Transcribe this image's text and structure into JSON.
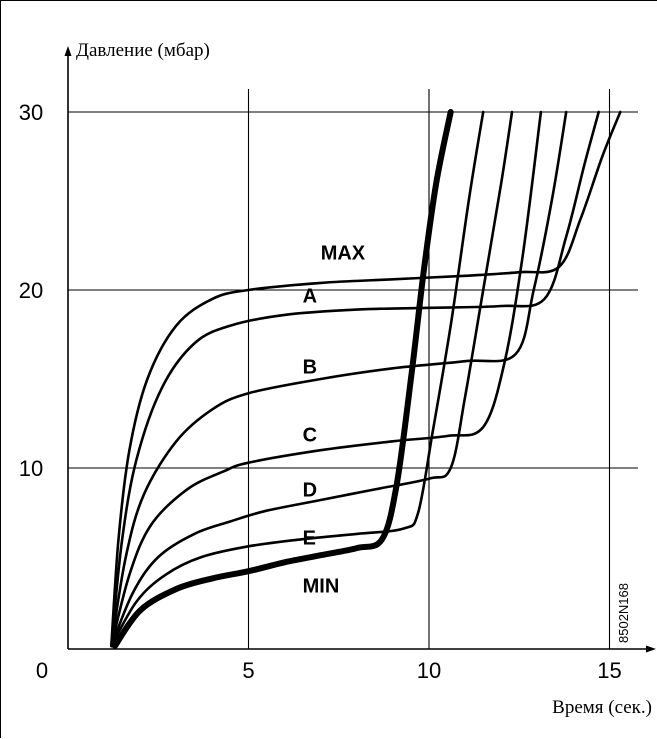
{
  "chart_data": {
    "type": "line",
    "ylabel": "Давление (мбар)",
    "xlabel": "Время (сек.)",
    "code": "8502N168",
    "origin_label": "0",
    "xlim": [
      0,
      16
    ],
    "ylim": [
      0,
      32
    ],
    "x_ticks": [
      {
        "value": 5,
        "label": "5"
      },
      {
        "value": 10,
        "label": "10"
      },
      {
        "value": 15,
        "label": "15"
      }
    ],
    "y_ticks": [
      {
        "value": 10,
        "label": "10"
      },
      {
        "value": 20,
        "label": "20"
      },
      {
        "value": 30,
        "label": "30"
      }
    ],
    "grid": true,
    "series": [
      {
        "name": "MAX",
        "label_pos": [
          7,
          21.7
        ],
        "bold": false,
        "points": [
          [
            1.2,
            0
          ],
          [
            1.4,
            6
          ],
          [
            1.7,
            11
          ],
          [
            2.2,
            15
          ],
          [
            3,
            18
          ],
          [
            4,
            19.5
          ],
          [
            5,
            20
          ],
          [
            7,
            20.4
          ],
          [
            9,
            20.6
          ],
          [
            11,
            20.8
          ],
          [
            12.5,
            21
          ],
          [
            13.6,
            21.3
          ],
          [
            14.2,
            24
          ],
          [
            14.8,
            27.5
          ],
          [
            15.3,
            30
          ]
        ]
      },
      {
        "name": "A",
        "label_pos": [
          6.5,
          19.3
        ],
        "bold": false,
        "points": [
          [
            1.2,
            0
          ],
          [
            1.5,
            6
          ],
          [
            1.9,
            10.5
          ],
          [
            2.6,
            14.5
          ],
          [
            3.5,
            17
          ],
          [
            4.5,
            18
          ],
          [
            6,
            18.6
          ],
          [
            8,
            18.9
          ],
          [
            10,
            19
          ],
          [
            12,
            19.1
          ],
          [
            13.2,
            19.5
          ],
          [
            13.8,
            23
          ],
          [
            14.3,
            27
          ],
          [
            14.7,
            30
          ]
        ]
      },
      {
        "name": "B",
        "label_pos": [
          6.5,
          15.3
        ],
        "bold": false,
        "points": [
          [
            1.2,
            0
          ],
          [
            1.6,
            5
          ],
          [
            2.1,
            8.5
          ],
          [
            3,
            11.5
          ],
          [
            4,
            13.3
          ],
          [
            5,
            14.2
          ],
          [
            7,
            15
          ],
          [
            9,
            15.6
          ],
          [
            11,
            16
          ],
          [
            12.4,
            16.4
          ],
          [
            12.9,
            20
          ],
          [
            13.4,
            25
          ],
          [
            13.8,
            30
          ]
        ]
      },
      {
        "name": "C",
        "label_pos": [
          6.5,
          11.5
        ],
        "bold": false,
        "points": [
          [
            1.2,
            0
          ],
          [
            1.7,
            4
          ],
          [
            2.3,
            6.8
          ],
          [
            3.3,
            8.8
          ],
          [
            4.3,
            9.8
          ],
          [
            5,
            10.3
          ],
          [
            7,
            11
          ],
          [
            9,
            11.5
          ],
          [
            10.5,
            11.8
          ],
          [
            11.5,
            12.3
          ],
          [
            12.1,
            16
          ],
          [
            12.6,
            22
          ],
          [
            13.1,
            30
          ]
        ]
      },
      {
        "name": "D",
        "label_pos": [
          6.5,
          8.4
        ],
        "bold": false,
        "points": [
          [
            1.2,
            0
          ],
          [
            1.8,
            3
          ],
          [
            2.5,
            5
          ],
          [
            3.5,
            6.3
          ],
          [
            4.5,
            7
          ],
          [
            5.5,
            7.6
          ],
          [
            7,
            8.2
          ],
          [
            8.5,
            8.8
          ],
          [
            10,
            9.4
          ],
          [
            10.6,
            10
          ],
          [
            11,
            14
          ],
          [
            11.5,
            20
          ],
          [
            12,
            26
          ],
          [
            12.3,
            30
          ]
        ]
      },
      {
        "name": "E",
        "label_pos": [
          6.5,
          5.7
        ],
        "bold": false,
        "points": [
          [
            1.2,
            0
          ],
          [
            1.9,
            2.5
          ],
          [
            2.7,
            4
          ],
          [
            3.7,
            5
          ],
          [
            5,
            5.6
          ],
          [
            6.5,
            6
          ],
          [
            8,
            6.3
          ],
          [
            9.3,
            6.6
          ],
          [
            9.7,
            7.5
          ],
          [
            10.1,
            12
          ],
          [
            10.6,
            18
          ],
          [
            11.1,
            25
          ],
          [
            11.5,
            30
          ]
        ]
      },
      {
        "name": "MIN",
        "label_pos": [
          6.5,
          3.0
        ],
        "bold": true,
        "points": [
          [
            1.3,
            0
          ],
          [
            2,
            2
          ],
          [
            3,
            3.2
          ],
          [
            4,
            3.8
          ],
          [
            5,
            4.2
          ],
          [
            6,
            4.7
          ],
          [
            7,
            5.1
          ],
          [
            8,
            5.5
          ],
          [
            8.7,
            6
          ],
          [
            9.1,
            9
          ],
          [
            9.5,
            15
          ],
          [
            9.85,
            21
          ],
          [
            10.2,
            26
          ],
          [
            10.6,
            30
          ]
        ]
      }
    ]
  }
}
